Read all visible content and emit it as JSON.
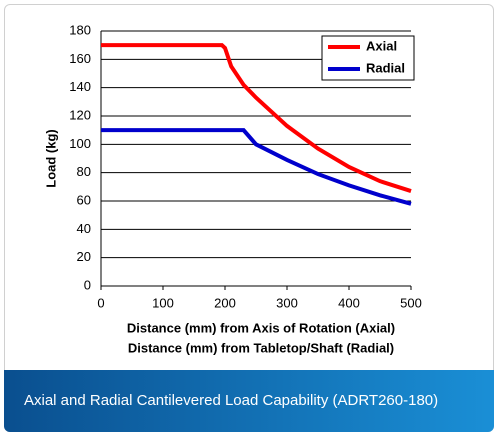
{
  "chart_data": {
    "type": "line",
    "ylabel": "Load (kg)",
    "xlabel": [
      "Distance (mm) from Axis of Rotation (Axial)",
      "Distance (mm) from Tabletop/Shaft (Radial)"
    ],
    "series": [
      {
        "name": "Axial",
        "color": "#ff0000",
        "x": [
          0,
          195,
          200,
          210,
          230,
          250,
          300,
          350,
          400,
          450,
          500
        ],
        "values": [
          170,
          170,
          168,
          155,
          142,
          133,
          113,
          97,
          84,
          74,
          67
        ]
      },
      {
        "name": "Radial",
        "color": "#0000cc",
        "x": [
          0,
          230,
          240,
          250,
          300,
          350,
          400,
          450,
          500
        ],
        "values": [
          110,
          110,
          105,
          100,
          89,
          79,
          71,
          64,
          58
        ]
      }
    ],
    "xlim": [
      0,
      500
    ],
    "xticks": [
      0,
      100,
      200,
      300,
      400,
      500
    ],
    "ylim": [
      0,
      180
    ],
    "yticks": [
      0,
      20,
      40,
      60,
      80,
      100,
      120,
      140,
      160,
      180
    ],
    "grid": true,
    "legend": "upper right"
  },
  "caption": "Axial and Radial Cantilevered Load Capability (ADRT260-180)"
}
